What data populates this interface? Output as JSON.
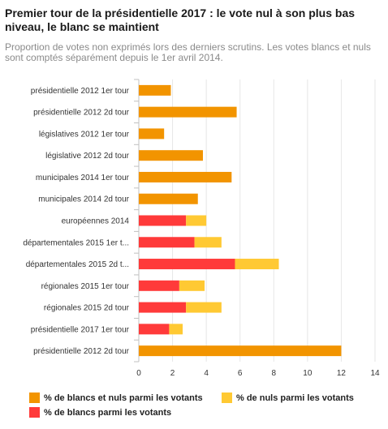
{
  "header": {
    "title": "Premier tour de la présidentielle 2017 : le vote nul à son plus bas niveau, le blanc se maintient",
    "subtitle": "Proportion de votes non exprimés lors des derniers scrutins. Les votes blancs et nuls sont comptés séparément depuis le 1er avril 2014."
  },
  "chart_data": {
    "type": "bar",
    "orientation": "horizontal",
    "stacked": true,
    "title": "Premier tour de la présidentielle 2017 : le vote nul à son plus bas niveau, le blanc se maintient",
    "xlim": [
      0,
      14
    ],
    "xticks": [
      "0",
      "2",
      "4",
      "6",
      "8",
      "10",
      "12",
      "14"
    ],
    "grid": true,
    "legend_position": "bottom",
    "categories": [
      "présidentielle 2012 1er tour",
      "présidentielle 2012 2d tour",
      "législatives 2012 1er tour",
      "législative 2012 2d tour",
      "municipales 2014 1er tour",
      "municipales 2014 2d tour",
      "européennes 2014",
      "départementales 2015 1er t...",
      "départementales 2015 2d t...",
      "régionales 2015 1er tour",
      "régionales 2015 2d tour",
      "présidentielle 2017 1er tour",
      "présidentielle 2012 2d tour"
    ],
    "series": [
      {
        "name": "% de blancs et nuls parmi les votants",
        "color": "#f29400",
        "values": [
          1.9,
          5.8,
          1.5,
          3.8,
          5.5,
          3.5,
          0,
          0,
          0,
          0,
          0,
          0,
          12.0
        ]
      },
      {
        "name": "% de blancs parmi les votants",
        "color": "#ff3a3a",
        "values": [
          0,
          0,
          0,
          0,
          0,
          0,
          2.8,
          3.3,
          5.7,
          2.4,
          2.8,
          1.8,
          0
        ]
      },
      {
        "name": "% de nuls parmi les votants",
        "color": "#ffc933",
        "values": [
          0,
          0,
          0,
          0,
          0,
          0,
          1.2,
          1.6,
          2.6,
          1.5,
          2.1,
          0.8,
          0
        ]
      }
    ]
  },
  "legend": {
    "items": [
      {
        "label": "% de blancs et nuls parmi les votants",
        "color": "#f29400"
      },
      {
        "label": "% de nuls parmi les votants",
        "color": "#ffc933"
      },
      {
        "label": "% de blancs parmi les votants",
        "color": "#ff3a3a"
      }
    ]
  }
}
